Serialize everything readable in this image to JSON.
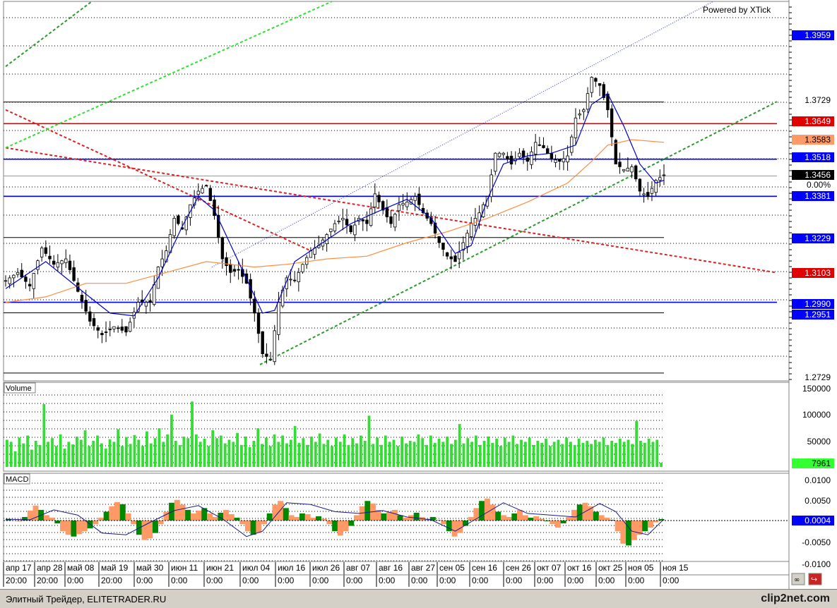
{
  "header": {
    "powered_by": "Powered by XTick"
  },
  "panes": {
    "volume_label": "Volume",
    "macd_label": "MACD"
  },
  "colors": {
    "price_tag": "#0000ff",
    "red_line": "#e00000",
    "orange_tag": "#ff9966",
    "volume_bars": "#33dd33",
    "macd_hist_green": "#008800",
    "macd_hist_orange": "#ff9966",
    "ma_short": "#0000cc",
    "ma_long": "#ff8c40",
    "channel_green": "#2a9a2a",
    "channel_light_green": "#33dd33",
    "trend_red": "#dd2222"
  },
  "status_bar": {
    "text": "Элитный Трейдер, ELITETRADER.RU",
    "watermark": "clip2net.com"
  },
  "chart_data": [
    {
      "type": "candlestick",
      "pane": "price",
      "y_tick_labels": [
        "1.3729",
        "1.2729"
      ],
      "ylim": [
        1.27,
        1.41
      ],
      "price_tags": [
        {
          "label": "1.3959",
          "style": "blue"
        },
        {
          "label": "1.3649",
          "style": "red"
        },
        {
          "label": "1.3583",
          "style": "orange"
        },
        {
          "label": "1.3518",
          "style": "blue"
        },
        {
          "label": "1.3456",
          "style": "current"
        },
        {
          "label": "0.00%",
          "style": "plain"
        },
        {
          "label": "1.3381",
          "style": "blue"
        },
        {
          "label": "1.3229",
          "style": "blue"
        },
        {
          "label": "1.3103",
          "style": "red"
        },
        {
          "label": "1.2990",
          "style": "blue"
        },
        {
          "label": "1.2951",
          "style": "blue"
        }
      ],
      "horizontal_levels": [
        {
          "value": 1.3729,
          "color": "black"
        },
        {
          "value": 1.3649,
          "color": "red"
        },
        {
          "value": 1.3518,
          "color": "blue"
        },
        {
          "value": 1.3456,
          "color": "gray"
        },
        {
          "value": 1.3381,
          "color": "blue"
        },
        {
          "value": 1.3229,
          "color": "black"
        },
        {
          "value": 1.299,
          "color": "blue"
        },
        {
          "value": 1.2951,
          "color": "black"
        },
        {
          "value": 1.2729,
          "color": "black"
        }
      ],
      "close_path": [
        [
          0,
          1.307
        ],
        [
          3,
          1.31
        ],
        [
          6,
          1.305
        ],
        [
          9,
          1.319
        ],
        [
          12,
          1.313
        ],
        [
          15,
          1.315
        ],
        [
          18,
          1.303
        ],
        [
          21,
          1.292
        ],
        [
          24,
          1.287
        ],
        [
          27,
          1.29
        ],
        [
          30,
          1.288
        ],
        [
          33,
          1.299
        ],
        [
          36,
          1.299
        ],
        [
          38,
          1.312
        ],
        [
          40,
          1.318
        ],
        [
          42,
          1.33
        ],
        [
          44,
          1.326
        ],
        [
          46,
          1.335
        ],
        [
          48,
          1.34
        ],
        [
          50,
          1.342
        ],
        [
          52,
          1.331
        ],
        [
          54,
          1.315
        ],
        [
          56,
          1.31
        ],
        [
          58,
          1.311
        ],
        [
          60,
          1.306
        ],
        [
          62,
          1.295
        ],
        [
          64,
          1.28
        ],
        [
          66,
          1.278
        ],
        [
          68,
          1.299
        ],
        [
          70,
          1.308
        ],
        [
          72,
          1.307
        ],
        [
          74,
          1.313
        ],
        [
          76,
          1.318
        ],
        [
          78,
          1.32
        ],
        [
          80,
          1.324
        ],
        [
          82,
          1.328
        ],
        [
          84,
          1.33
        ],
        [
          86,
          1.325
        ],
        [
          88,
          1.33
        ],
        [
          90,
          1.328
        ],
        [
          92,
          1.339
        ],
        [
          94,
          1.333
        ],
        [
          96,
          1.328
        ],
        [
          98,
          1.335
        ],
        [
          100,
          1.336
        ],
        [
          102,
          1.338
        ],
        [
          104,
          1.332
        ],
        [
          106,
          1.328
        ],
        [
          108,
          1.321
        ],
        [
          110,
          1.316
        ],
        [
          112,
          1.314
        ],
        [
          114,
          1.321
        ],
        [
          116,
          1.328
        ],
        [
          118,
          1.332
        ],
        [
          120,
          1.338
        ],
        [
          122,
          1.354
        ],
        [
          124,
          1.354
        ],
        [
          126,
          1.35
        ],
        [
          128,
          1.354
        ],
        [
          130,
          1.351
        ],
        [
          132,
          1.358
        ],
        [
          134,
          1.356
        ],
        [
          136,
          1.352
        ],
        [
          138,
          1.351
        ],
        [
          140,
          1.353
        ],
        [
          142,
          1.367
        ],
        [
          144,
          1.37
        ],
        [
          146,
          1.382
        ],
        [
          148,
          1.379
        ],
        [
          150,
          1.37
        ],
        [
          152,
          1.35
        ],
        [
          154,
          1.348
        ],
        [
          156,
          1.349
        ],
        [
          158,
          1.34
        ],
        [
          160,
          1.338
        ],
        [
          162,
          1.344
        ],
        [
          164,
          1.346
        ]
      ],
      "ma_short": [
        [
          0,
          1.304
        ],
        [
          10,
          1.314
        ],
        [
          20,
          1.302
        ],
        [
          26,
          1.295
        ],
        [
          32,
          1.294
        ],
        [
          38,
          1.308
        ],
        [
          44,
          1.327
        ],
        [
          48,
          1.338
        ],
        [
          52,
          1.333
        ],
        [
          58,
          1.314
        ],
        [
          64,
          1.295
        ],
        [
          67,
          1.296
        ],
        [
          72,
          1.314
        ],
        [
          78,
          1.32
        ],
        [
          86,
          1.328
        ],
        [
          92,
          1.332
        ],
        [
          100,
          1.337
        ],
        [
          106,
          1.33
        ],
        [
          112,
          1.317
        ],
        [
          116,
          1.32
        ],
        [
          120,
          1.337
        ],
        [
          124,
          1.35
        ],
        [
          130,
          1.353
        ],
        [
          136,
          1.354
        ],
        [
          142,
          1.357
        ],
        [
          146,
          1.372
        ],
        [
          150,
          1.376
        ],
        [
          154,
          1.364
        ],
        [
          158,
          1.35
        ],
        [
          162,
          1.343
        ],
        [
          164,
          1.344
        ]
      ],
      "ma_long": [
        [
          0,
          1.299
        ],
        [
          10,
          1.301
        ],
        [
          20,
          1.306
        ],
        [
          30,
          1.306
        ],
        [
          40,
          1.31
        ],
        [
          50,
          1.314
        ],
        [
          56,
          1.313
        ],
        [
          62,
          1.312
        ],
        [
          70,
          1.313
        ],
        [
          80,
          1.315
        ],
        [
          90,
          1.316
        ],
        [
          100,
          1.321
        ],
        [
          110,
          1.325
        ],
        [
          120,
          1.33
        ],
        [
          130,
          1.336
        ],
        [
          140,
          1.343
        ],
        [
          146,
          1.351
        ],
        [
          150,
          1.357
        ],
        [
          156,
          1.359
        ],
        [
          164,
          1.358
        ]
      ]
    },
    {
      "type": "bar",
      "pane": "volume",
      "y_tick_labels": [
        "150000",
        "100000",
        "50000"
      ],
      "ylim": [
        0,
        155000
      ],
      "last_value_label": "7961",
      "values": [
        52000,
        48000,
        30000,
        56000,
        45000,
        60000,
        33000,
        50000,
        42000,
        120000,
        48000,
        55000,
        40000,
        62000,
        35000,
        48000,
        43000,
        58000,
        52000,
        70000,
        40000,
        50000,
        60000,
        45000,
        35000,
        53000,
        48000,
        72000,
        40000,
        57000,
        44000,
        61000,
        52000,
        40000,
        68000,
        45000,
        55000,
        74000,
        48000,
        62000,
        100000,
        50000,
        42000,
        58000,
        55000,
        125000,
        62000,
        48000,
        54000,
        40000,
        70000,
        55000,
        60000,
        45000,
        52000,
        48000,
        65000,
        42000,
        58000,
        38000,
        50000,
        74000,
        44000,
        56000,
        40000,
        62000,
        48000,
        60000,
        45000,
        52000,
        78000,
        46000,
        55000,
        42000,
        58000,
        48000,
        64000,
        44000,
        52000,
        40000,
        56000,
        48000,
        62000,
        42000,
        55000,
        45000,
        60000,
        50000,
        98000,
        44000,
        56000,
        42000,
        60000,
        48000,
        52000,
        40000,
        58000,
        45000,
        50000,
        48000,
        62000,
        55000,
        42000,
        60000,
        46000,
        54000,
        48000,
        58000,
        44000,
        52000,
        82000,
        45000,
        55000,
        48000,
        60000,
        42000,
        50000,
        58000,
        46000,
        54000,
        40000,
        56000,
        48000,
        60000,
        44000,
        52000,
        48000,
        56000,
        42000,
        50000,
        46000,
        54000,
        40000,
        48000,
        52000,
        44000,
        56000,
        48000,
        42000,
        54000,
        46000,
        50000,
        44000,
        52000,
        48000,
        56000,
        42000,
        50000,
        46000,
        54000,
        48000,
        52000,
        44000,
        88000,
        50000,
        46000,
        54000,
        48000,
        52000,
        8000
      ]
    },
    {
      "type": "bar",
      "pane": "macd",
      "y_tick_labels": [
        "0.0100",
        "0.0050",
        "0.0004",
        "-0.0050",
        "-0.0100"
      ],
      "ylim": [
        -0.0115,
        0.0115
      ],
      "last_value_label": "0.0004",
      "signal": [
        [
          0,
          0.0004
        ],
        [
          6,
          0.0002
        ],
        [
          12,
          0.003
        ],
        [
          18,
          0.0015
        ],
        [
          24,
          -0.0035
        ],
        [
          30,
          -0.004
        ],
        [
          36,
          -0.0005
        ],
        [
          42,
          0.0028
        ],
        [
          48,
          0.0042
        ],
        [
          54,
          0.0005
        ],
        [
          60,
          -0.0045
        ],
        [
          64,
          -0.003
        ],
        [
          70,
          0.005
        ],
        [
          76,
          0.0045
        ],
        [
          82,
          0.0025
        ],
        [
          88,
          0.002
        ],
        [
          94,
          0.0028
        ],
        [
          100,
          0.001
        ],
        [
          106,
          0.0002
        ],
        [
          112,
          -0.003
        ],
        [
          118,
          0.001
        ],
        [
          124,
          0.005
        ],
        [
          130,
          0.002
        ],
        [
          136,
          0.0015
        ],
        [
          142,
          0.001
        ],
        [
          148,
          0.0048
        ],
        [
          152,
          0.0025
        ],
        [
          156,
          -0.003
        ],
        [
          160,
          -0.004
        ],
        [
          164,
          0.0004
        ]
      ],
      "histogram": [
        0.0003,
        0.0001,
        -0.0002,
        0.001,
        0.0028,
        0.0042,
        0.003,
        0.0015,
        0.0008,
        -0.0008,
        -0.003,
        -0.004,
        -0.0045,
        -0.0038,
        -0.003,
        -0.0022,
        -0.001,
        0.0008,
        0.0025,
        0.004,
        0.0052,
        0.0046,
        0.002,
        -0.001,
        -0.004,
        -0.0055,
        -0.005,
        -0.0035,
        -0.001,
        0.0025,
        0.005,
        0.0058,
        0.0045,
        0.003,
        0.002,
        0.0028,
        0.0035,
        0.002,
        0.001,
        0.0022,
        0.003,
        0.0018,
        0.0008,
        -0.001,
        -0.003,
        -0.004,
        -0.0035,
        -0.001,
        0.002,
        0.0045,
        0.0055,
        0.0035,
        0.0015,
        0.001,
        0.002,
        0.0018,
        0.0008,
        0.0012,
        0.0005,
        -0.001,
        -0.003,
        -0.0042,
        -0.003,
        -0.0015,
        0.0015,
        0.004,
        0.0055,
        0.0048,
        0.003,
        0.002,
        0.0025,
        0.003,
        0.0015,
        0.0008,
        0.0015,
        0.0022,
        0.001,
        0.0005,
        0.001,
        0.0002,
        -0.001,
        -0.003,
        -0.0045,
        -0.0035,
        -0.0015,
        0.001,
        0.0035,
        0.0055,
        0.0062,
        0.0045,
        0.0025,
        0.0015,
        0.001,
        0.002,
        0.003,
        0.0015,
        0.0008,
        0.0012,
        0.0005,
        -0.0002,
        -0.001,
        -0.002,
        -0.0008,
        0.001,
        0.003,
        0.0045,
        0.005,
        0.004,
        0.0025,
        0.0015,
        0.0008,
        0.0002,
        -0.003,
        -0.0065,
        -0.007,
        -0.0055,
        -0.004,
        -0.003,
        -0.002,
        -0.0005,
        0.0004
      ]
    }
  ],
  "time_axis": {
    "date_labels": [
      "апр 17",
      "апр 28",
      "май 08",
      "май 19",
      "май 30",
      "июн 11",
      "июн 21",
      "июл 04",
      "июл 16",
      "июл 26",
      "авг 07",
      "авг 16",
      "авг 27",
      "сен 05",
      "сен 16",
      "сен 26",
      "окт 07",
      "окт 16",
      "окт 25",
      "ноя 05",
      "ноя 15"
    ],
    "time_labels": [
      "20:00",
      "20:00",
      "0:00",
      "20:00",
      "0:00",
      "0:00",
      "0:00",
      "0:00",
      "0:00",
      "0:00",
      "0:00",
      "0:00",
      "0:00",
      "0:00",
      "0:00",
      "0:00",
      "0:00",
      "0:00",
      "0:00",
      "0:00",
      "0:00"
    ]
  }
}
